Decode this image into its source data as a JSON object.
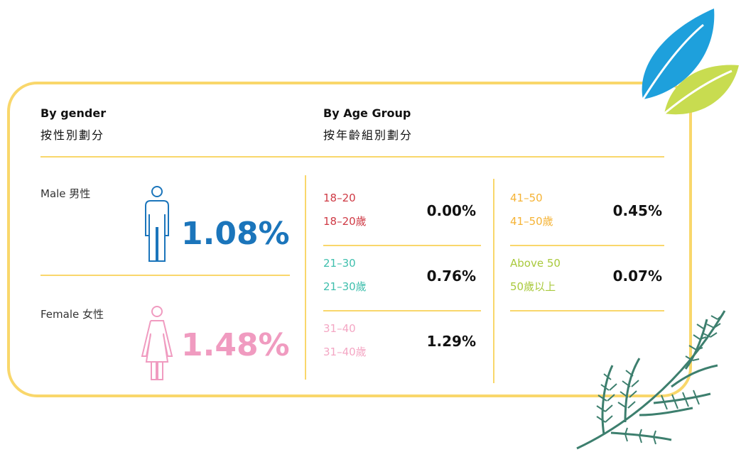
{
  "gender": {
    "title": "By gender",
    "title_zh": "按性別劃分",
    "male": {
      "label": "Male 男性",
      "value": "1.08%"
    },
    "female": {
      "label": "Female 女性",
      "value": "1.48%"
    }
  },
  "age": {
    "title": "By Age Group",
    "title_zh": "按年齡組別劃分",
    "groups": [
      {
        "label": "18–20",
        "label_zh": "18–20歲",
        "value": "0.00%"
      },
      {
        "label": "21–30",
        "label_zh": "21–30歲",
        "value": "0.76%"
      },
      {
        "label": "31–40",
        "label_zh": "31–40歲",
        "value": "1.29%"
      },
      {
        "label": "41–50",
        "label_zh": "41–50歲",
        "value": "0.45%"
      },
      {
        "label": "Above 50",
        "label_zh": "50歲以上",
        "value": "0.07%"
      }
    ]
  }
}
